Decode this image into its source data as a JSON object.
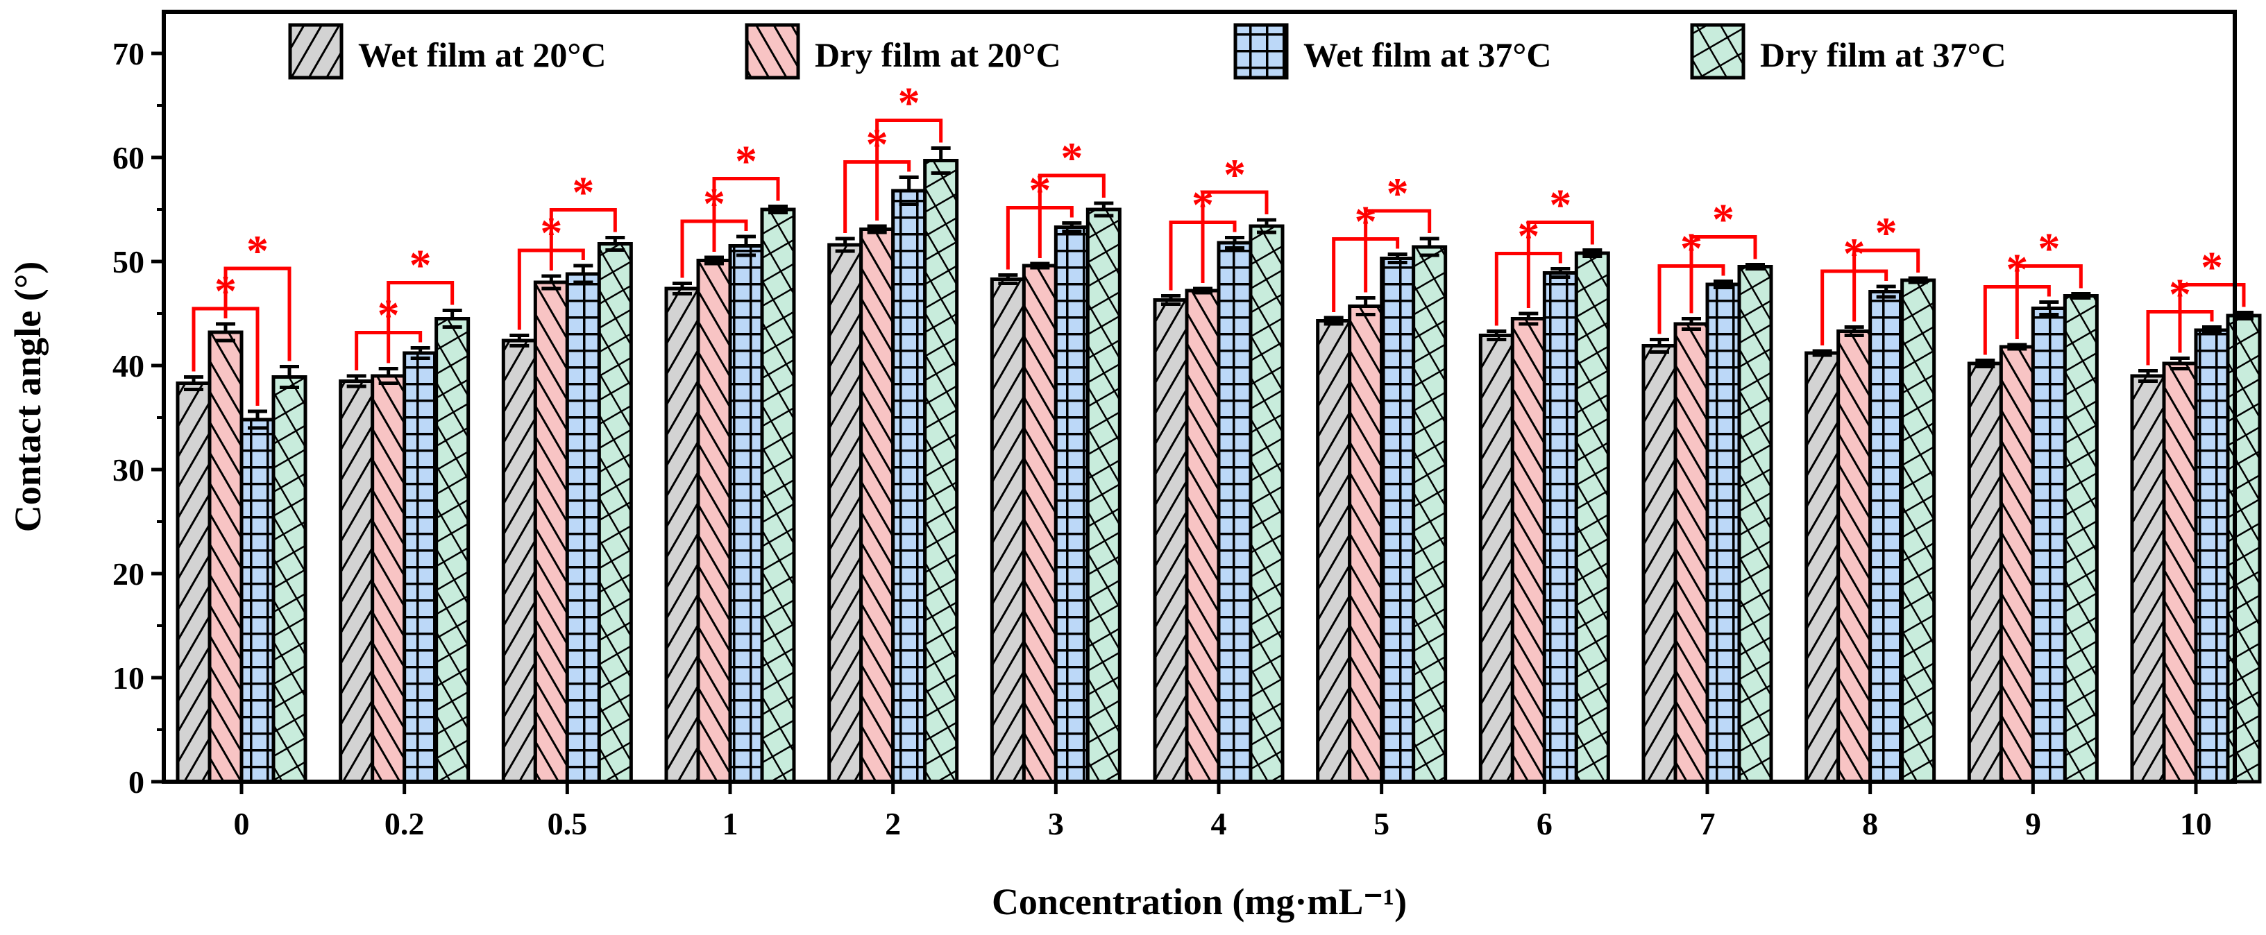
{
  "chart_data": {
    "type": "bar",
    "title": "",
    "xlabel": "Concentration (mg·mL⁻¹)",
    "ylabel": "Contact angle (°)",
    "ylim": [
      0,
      74
    ],
    "yticks": [
      0,
      10,
      20,
      30,
      40,
      50,
      60,
      70
    ],
    "categories": [
      "0",
      "0.2",
      "0.5",
      "1",
      "2",
      "3",
      "4",
      "5",
      "6",
      "7",
      "8",
      "9",
      "10"
    ],
    "legend_placement": "top",
    "series": [
      {
        "name": "Wet film at 20°C",
        "color": "#d3d3d3",
        "pattern": "diag-right",
        "values": [
          38.3,
          38.5,
          42.4,
          47.4,
          51.6,
          48.3,
          46.3,
          44.3,
          42.9,
          41.9,
          41.2,
          40.2,
          39.0
        ],
        "errors": [
          0.6,
          0.5,
          0.5,
          0.5,
          0.6,
          0.4,
          0.4,
          0.3,
          0.4,
          0.6,
          0.2,
          0.3,
          0.5
        ]
      },
      {
        "name": "Dry film at 20°C",
        "color": "#f8c4c4",
        "pattern": "diag-left",
        "values": [
          43.2,
          39.0,
          48.0,
          50.1,
          53.1,
          49.6,
          47.2,
          45.7,
          44.5,
          44.0,
          43.3,
          41.8,
          40.2
        ],
        "errors": [
          0.8,
          0.7,
          0.6,
          0.3,
          0.3,
          0.2,
          0.2,
          0.8,
          0.5,
          0.5,
          0.4,
          0.2,
          0.5
        ]
      },
      {
        "name": "Wet film at 37°C",
        "color": "#bcd8f8",
        "pattern": "grid",
        "values": [
          34.8,
          41.2,
          48.8,
          51.5,
          56.8,
          53.3,
          51.8,
          50.3,
          48.9,
          47.8,
          47.1,
          45.5,
          43.4
        ],
        "errors": [
          0.8,
          0.5,
          0.8,
          0.9,
          1.3,
          0.4,
          0.5,
          0.4,
          0.4,
          0.3,
          0.5,
          0.6,
          0.3
        ]
      },
      {
        "name": "Dry film at 37°C",
        "color": "#c8ecdc",
        "pattern": "crosshatch",
        "values": [
          38.9,
          44.5,
          51.7,
          55.0,
          59.7,
          55.0,
          53.4,
          51.4,
          50.8,
          49.5,
          48.2,
          46.7,
          44.8
        ],
        "errors": [
          1.0,
          0.8,
          0.6,
          0.3,
          1.2,
          0.6,
          0.6,
          0.8,
          0.3,
          0.2,
          0.2,
          0.2,
          0.3
        ]
      }
    ],
    "significance": {
      "marker": "*",
      "comparisons": [
        [
          "Wet film at 20°C",
          "Wet film at 37°C"
        ],
        [
          "Dry film at 20°C",
          "Dry film at 37°C"
        ]
      ]
    }
  }
}
